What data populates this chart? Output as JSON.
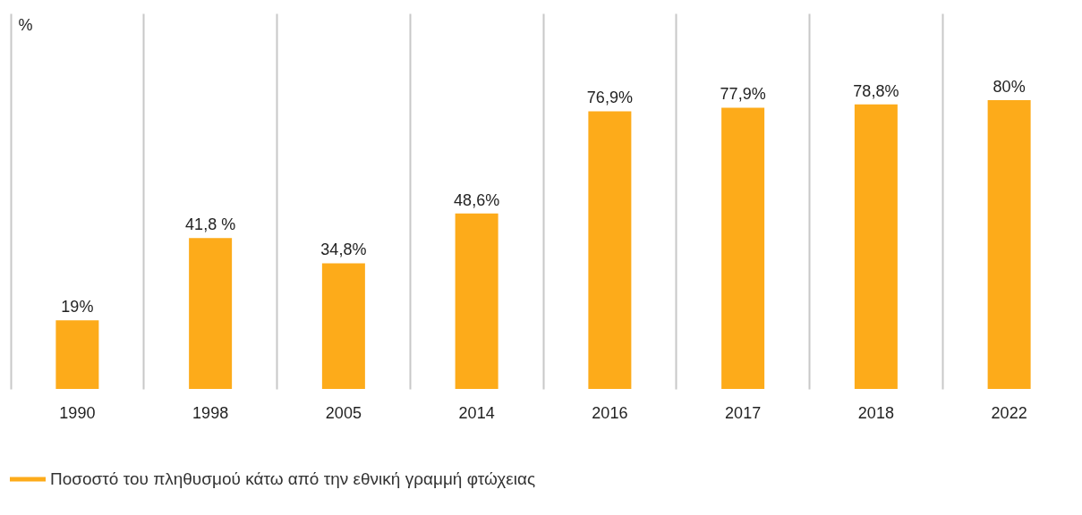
{
  "chart_data": {
    "type": "bar",
    "ylabel": "%",
    "categories": [
      "1990",
      "1998",
      "2005",
      "2014",
      "2016",
      "2017",
      "2018",
      "2022"
    ],
    "series": [
      {
        "name": "Ποσοστό του πληθυσμού κάτω από την εθνική γραμμή φτώχειας",
        "color": "#fdab1a",
        "values": [
          19,
          41.8,
          34.8,
          48.6,
          76.9,
          77.9,
          78.8,
          80
        ],
        "value_labels": [
          "19%",
          "41,8 %",
          "34,8%",
          "48,6%",
          "76,9%",
          "77,9%",
          "78,8%",
          "80%"
        ]
      }
    ],
    "ylim": [
      0,
      104
    ],
    "tick_labels": "x",
    "grid": "x",
    "legend": "bottom left"
  }
}
